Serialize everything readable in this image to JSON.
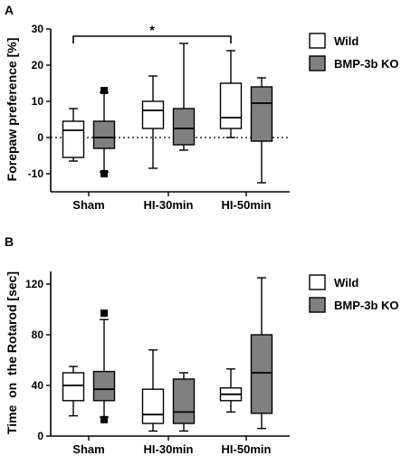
{
  "chart_data": [
    {
      "panel": "A",
      "type": "box",
      "ylabel": "Forepaw preference [%]",
      "ylim": [
        -15,
        30
      ],
      "yticks": [
        -10,
        0,
        10,
        20,
        30
      ],
      "categories": [
        "Sham",
        "HI-30min",
        "HI-50min"
      ],
      "reference_line_y": 0,
      "significance": {
        "label": "*",
        "from": "Sham",
        "to": "HI-50min"
      },
      "series": [
        {
          "name": "Wild",
          "color": "#ffffff",
          "boxes": [
            {
              "min": -6.5,
              "q1": -5.5,
              "median": 2,
              "q3": 4.5,
              "max": 8
            },
            {
              "min": -8.5,
              "q1": 2.5,
              "median": 7.5,
              "q3": 10,
              "max": 17
            },
            {
              "min": 0,
              "q1": 2.5,
              "median": 5.5,
              "q3": 15,
              "max": 24
            }
          ],
          "outliers": [
            [],
            [],
            []
          ]
        },
        {
          "name": "BMP-3b KO",
          "color": "#808080",
          "boxes": [
            {
              "min": -9.5,
              "q1": -3,
              "median": 0,
              "q3": 4.5,
              "max": 12.5
            },
            {
              "min": -3.5,
              "q1": -2,
              "median": 2.5,
              "q3": 8,
              "max": 26
            },
            {
              "min": -12.5,
              "q1": -1,
              "median": 9.5,
              "q3": 14,
              "max": 16.5
            }
          ],
          "outliers": [
            [
              13,
              -10
            ],
            [],
            []
          ]
        }
      ]
    },
    {
      "panel": "B",
      "type": "box",
      "ylabel": "Time  on  the Rotarod [sec]",
      "ylim": [
        0,
        130
      ],
      "yticks": [
        0,
        40,
        80,
        120
      ],
      "categories": [
        "Sham",
        "HI-30min",
        "HI-50min"
      ],
      "series": [
        {
          "name": "Wild",
          "color": "#ffffff",
          "boxes": [
            {
              "min": 16,
              "q1": 28,
              "median": 40,
              "q3": 50,
              "max": 55
            },
            {
              "min": 4,
              "q1": 10,
              "median": 17,
              "q3": 37,
              "max": 68
            },
            {
              "min": 19,
              "q1": 28,
              "median": 33,
              "q3": 38,
              "max": 53
            }
          ],
          "outliers": [
            [],
            [],
            []
          ]
        },
        {
          "name": "BMP-3b KO",
          "color": "#808080",
          "boxes": [
            {
              "min": 15,
              "q1": 28,
              "median": 37,
              "q3": 51,
              "max": 92
            },
            {
              "min": 4,
              "q1": 10,
              "median": 19,
              "q3": 45,
              "max": 50
            },
            {
              "min": 6,
              "q1": 18,
              "median": 50,
              "q3": 80,
              "max": 125
            }
          ],
          "outliers": [
            [
              97,
              13
            ],
            [],
            []
          ]
        }
      ]
    }
  ]
}
